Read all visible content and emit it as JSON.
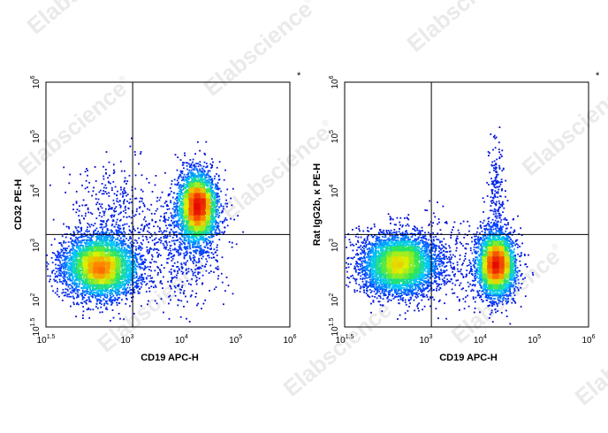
{
  "watermark": {
    "text": "Elabscience",
    "mark": "®"
  },
  "chart_data": [
    {
      "type": "scatter",
      "panel": "left",
      "xlabel": "CD19 APC-H",
      "ylabel": "CD32 PE-H",
      "xscale": "log",
      "yscale": "log",
      "xlim_exp": [
        1.5,
        6
      ],
      "ylim_exp": [
        1.5,
        6
      ],
      "x_ticks": [
        {
          "base": "10",
          "exp": "1.5",
          "value_exp": 1.5
        },
        {
          "base": "10",
          "exp": "3",
          "value_exp": 3
        },
        {
          "base": "10",
          "exp": "4",
          "value_exp": 4
        },
        {
          "base": "10",
          "exp": "5",
          "value_exp": 5
        },
        {
          "base": "10",
          "exp": "6",
          "value_exp": 6
        }
      ],
      "y_ticks": [
        {
          "base": "10",
          "exp": "1.5",
          "value_exp": 1.5
        },
        {
          "base": "10",
          "exp": "2",
          "value_exp": 2
        },
        {
          "base": "10",
          "exp": "3",
          "value_exp": 3
        },
        {
          "base": "10",
          "exp": "4",
          "value_exp": 4
        },
        {
          "base": "10",
          "exp": "5",
          "value_exp": 5
        },
        {
          "base": "10",
          "exp": "6",
          "value_exp": 6
        }
      ],
      "gate_x_exp": 3.1,
      "gate_y_exp": 3.2,
      "corner_mark": "*",
      "populations": [
        {
          "center_x_exp": 2.5,
          "center_y_exp": 2.6,
          "spread_x": 0.36,
          "spread_y": 0.3,
          "count": 4300
        },
        {
          "center_x_exp": 4.3,
          "center_y_exp": 3.7,
          "spread_x": 0.17,
          "spread_y": 0.32,
          "count": 3300
        },
        {
          "center_x_exp": 4.05,
          "center_y_exp": 3.1,
          "spread_x": 0.38,
          "spread_y": 0.55,
          "count": 700
        },
        {
          "center_x_exp": 2.7,
          "center_y_exp": 3.6,
          "spread_x": 0.4,
          "spread_y": 0.5,
          "count": 350
        }
      ]
    },
    {
      "type": "scatter",
      "panel": "right",
      "xlabel": "CD19 APC-H",
      "ylabel": "Rat IgG2b, κ PE-H",
      "xscale": "log",
      "yscale": "log",
      "xlim_exp": [
        1.5,
        6
      ],
      "ylim_exp": [
        1.5,
        6
      ],
      "x_ticks": [
        {
          "base": "10",
          "exp": "1.5",
          "value_exp": 1.5
        },
        {
          "base": "10",
          "exp": "3",
          "value_exp": 3
        },
        {
          "base": "10",
          "exp": "4",
          "value_exp": 4
        },
        {
          "base": "10",
          "exp": "5",
          "value_exp": 5
        },
        {
          "base": "10",
          "exp": "6",
          "value_exp": 6
        }
      ],
      "y_ticks": [
        {
          "base": "10",
          "exp": "1.5",
          "value_exp": 1.5
        },
        {
          "base": "10",
          "exp": "2",
          "value_exp": 2
        },
        {
          "base": "10",
          "exp": "3",
          "value_exp": 3
        },
        {
          "base": "10",
          "exp": "4",
          "value_exp": 4
        },
        {
          "base": "10",
          "exp": "5",
          "value_exp": 5
        },
        {
          "base": "10",
          "exp": "6",
          "value_exp": 6
        }
      ],
      "gate_x_exp": 3.1,
      "gate_y_exp": 3.2,
      "corner_mark": "*",
      "populations": [
        {
          "center_x_exp": 2.5,
          "center_y_exp": 2.65,
          "spread_x": 0.36,
          "spread_y": 0.28,
          "count": 4300
        },
        {
          "center_x_exp": 4.3,
          "center_y_exp": 2.65,
          "spread_x": 0.17,
          "spread_y": 0.3,
          "count": 3600
        },
        {
          "center_x_exp": 4.3,
          "center_y_exp": 3.9,
          "spread_x": 0.08,
          "spread_y": 0.55,
          "count": 200
        },
        {
          "center_x_exp": 3.6,
          "center_y_exp": 2.7,
          "spread_x": 0.55,
          "spread_y": 0.45,
          "count": 300
        }
      ]
    }
  ]
}
